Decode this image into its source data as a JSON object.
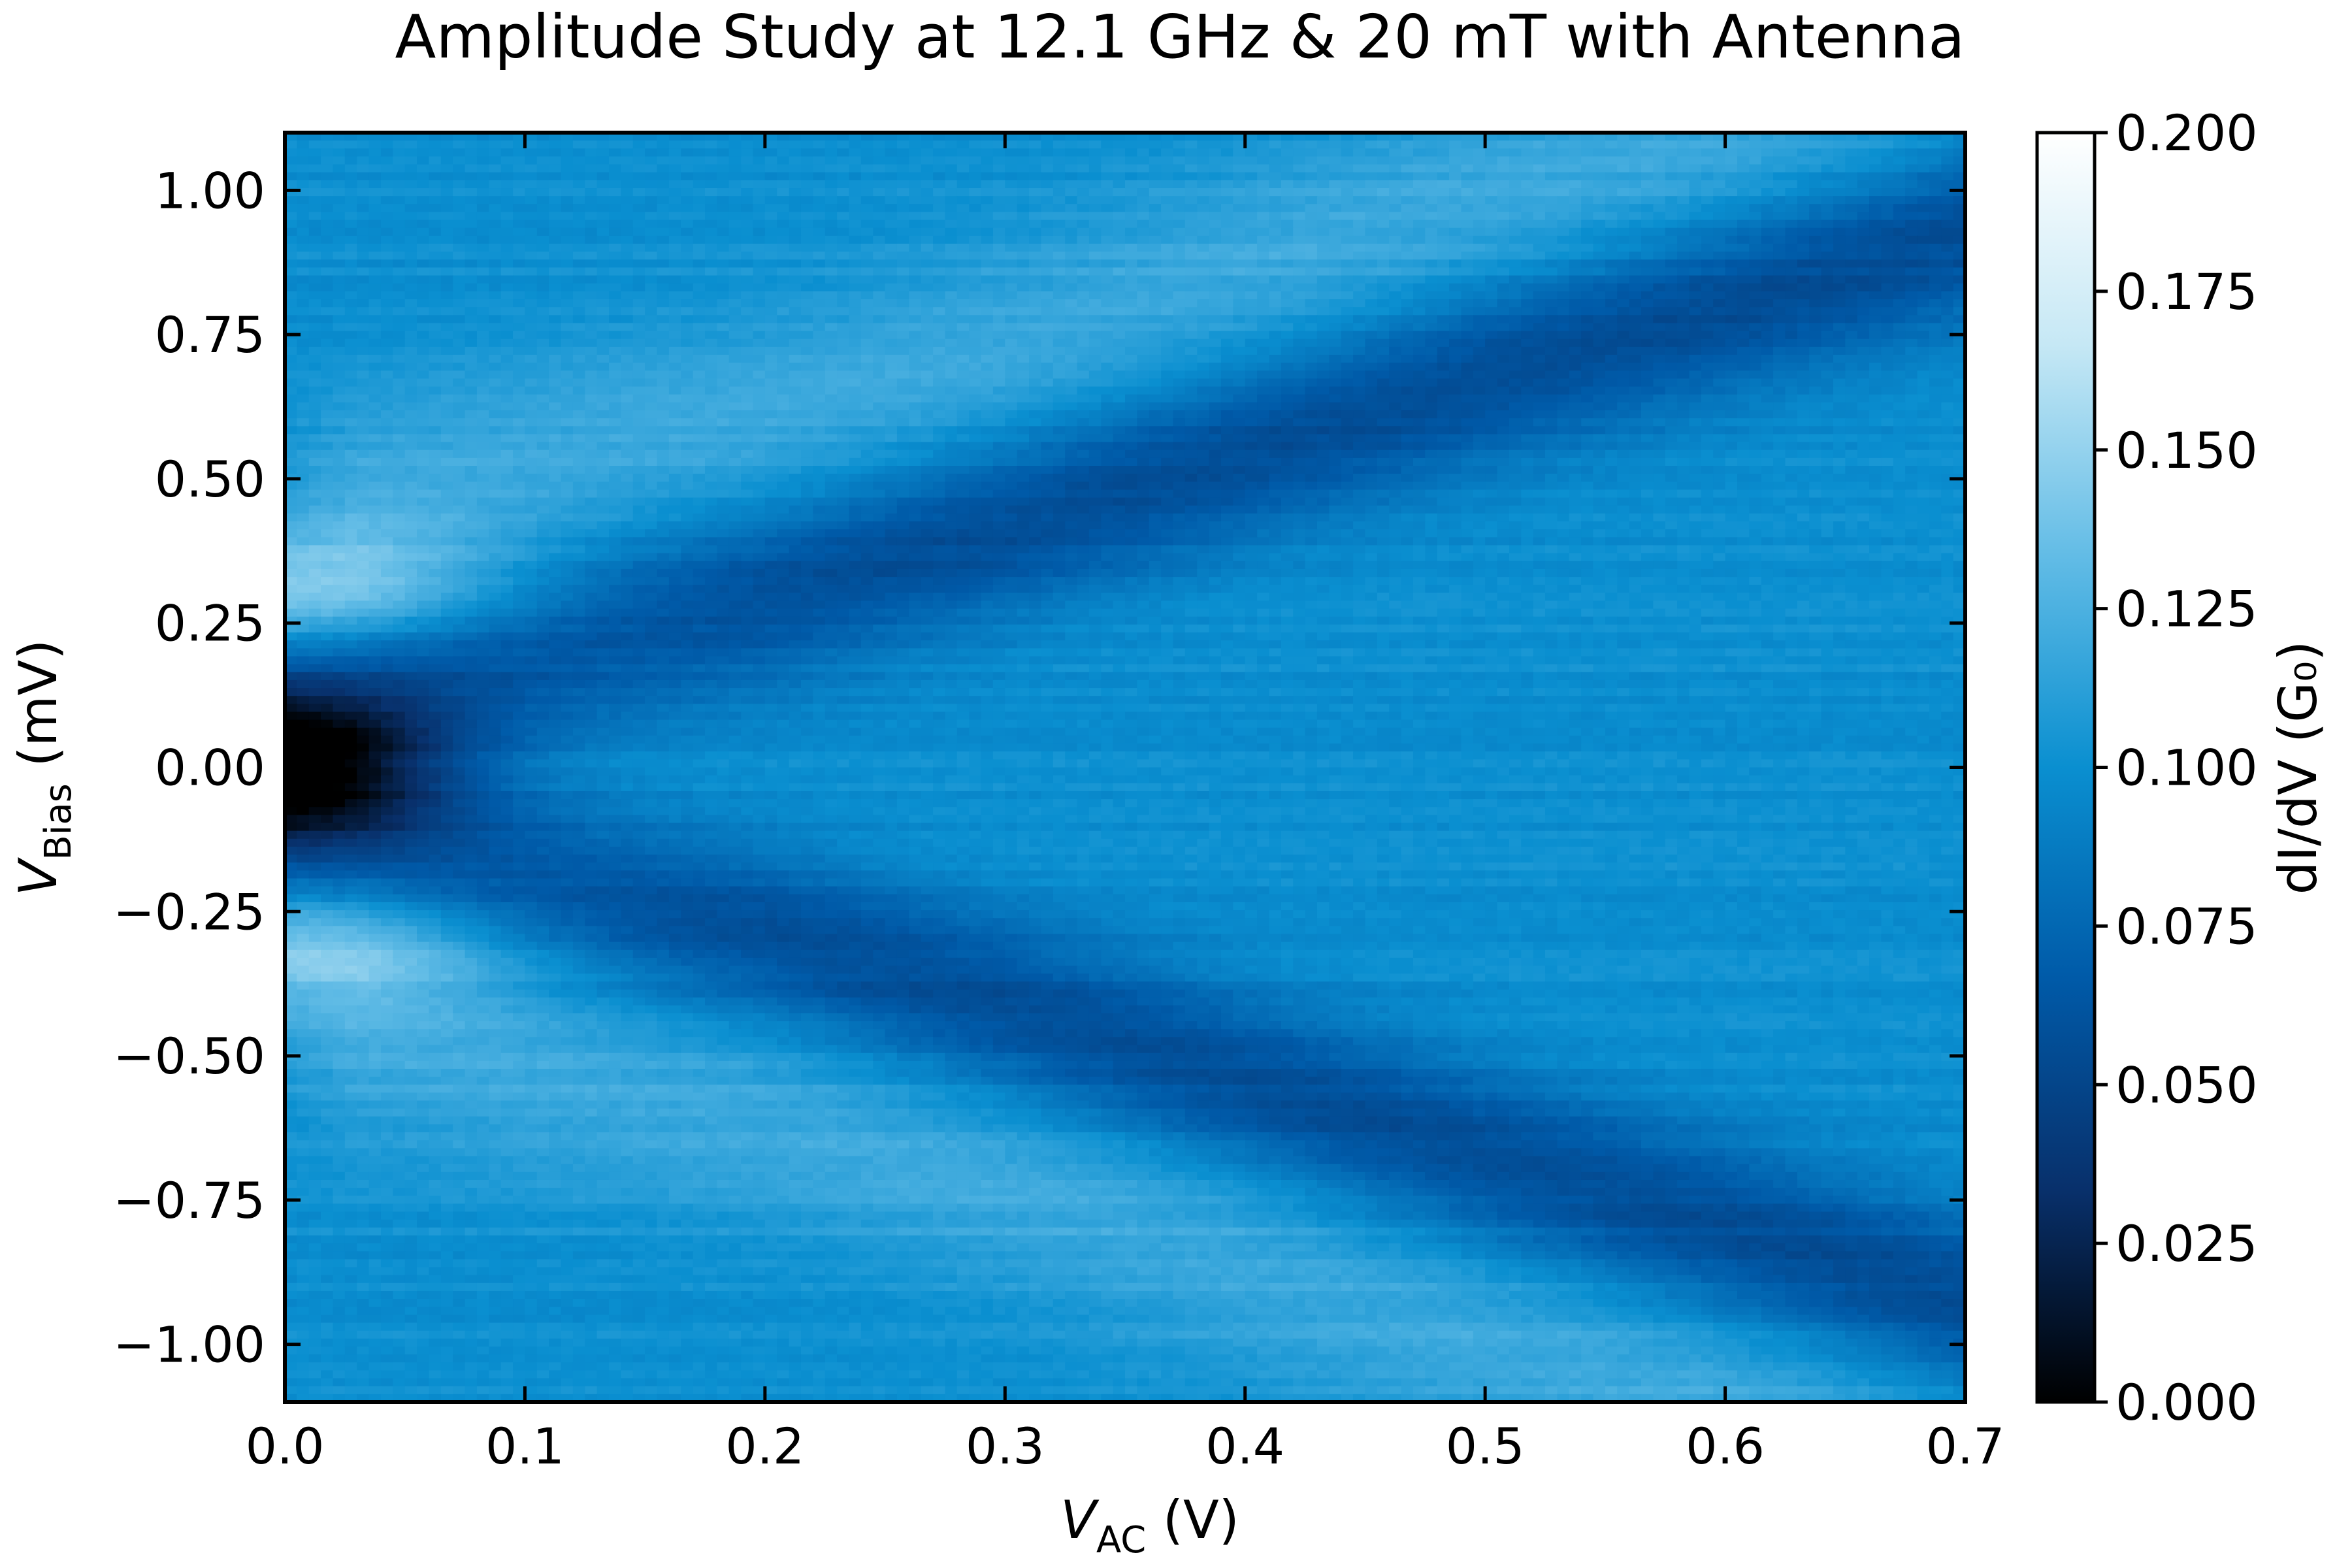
{
  "chart_data": {
    "type": "heatmap",
    "title": "Amplitude Study at 12.1 GHz & 20 mT with Antenna",
    "xlabel": {
      "main": "V",
      "sub": "AC",
      "unit": " (V)"
    },
    "ylabel": {
      "main": "V",
      "sub": "Bias",
      "unit": " (mV)"
    },
    "colorbar_label": "dI/dV (G₀)",
    "xlim": [
      0.0,
      0.7
    ],
    "ylim": [
      -1.1,
      1.1
    ],
    "zlim": [
      0.0,
      0.2
    ],
    "x_ticks": [
      0.0,
      0.1,
      0.2,
      0.3,
      0.4,
      0.5,
      0.6,
      0.7
    ],
    "x_tick_labels": [
      "0.0",
      "0.1",
      "0.2",
      "0.3",
      "0.4",
      "0.5",
      "0.6",
      "0.7"
    ],
    "y_ticks": [
      1.0,
      0.75,
      0.5,
      0.25,
      0.0,
      -0.25,
      -0.5,
      -0.75,
      -1.0
    ],
    "y_tick_labels": [
      "1.00",
      "0.75",
      "0.50",
      "0.25",
      "0.00",
      "−0.25",
      "−0.50",
      "−0.75",
      "−1.00"
    ],
    "colorbar_ticks": [
      0.0,
      0.025,
      0.05,
      0.075,
      0.1,
      0.125,
      0.15,
      0.175,
      0.2
    ],
    "colorbar_tick_labels": [
      "0.000",
      "0.025",
      "0.050",
      "0.075",
      "0.100",
      "0.125",
      "0.150",
      "0.175",
      "0.200"
    ],
    "colormap": [
      "#000000",
      "#08306b",
      "#005aa8",
      "#0a8fd0",
      "#62bce6",
      "#c6e8f5",
      "#ffffff"
    ],
    "features": {
      "background_level": 0.1,
      "zero_bias_minimum": 0.005,
      "gap_edge_peak": 0.15,
      "dark_band_level": 0.055,
      "band_edges_mV": [
        {
          "x": 0.0,
          "y": 0.13
        },
        {
          "x": 0.05,
          "y": 0.17
        },
        {
          "x": 0.1,
          "y": 0.22
        },
        {
          "x": 0.2,
          "y": 0.3
        },
        {
          "x": 0.3,
          "y": 0.42
        },
        {
          "x": 0.4,
          "y": 0.55
        },
        {
          "x": 0.5,
          "y": 0.68
        },
        {
          "x": 0.6,
          "y": 0.8
        },
        {
          "x": 0.7,
          "y": 0.93
        }
      ]
    },
    "grid": false
  }
}
